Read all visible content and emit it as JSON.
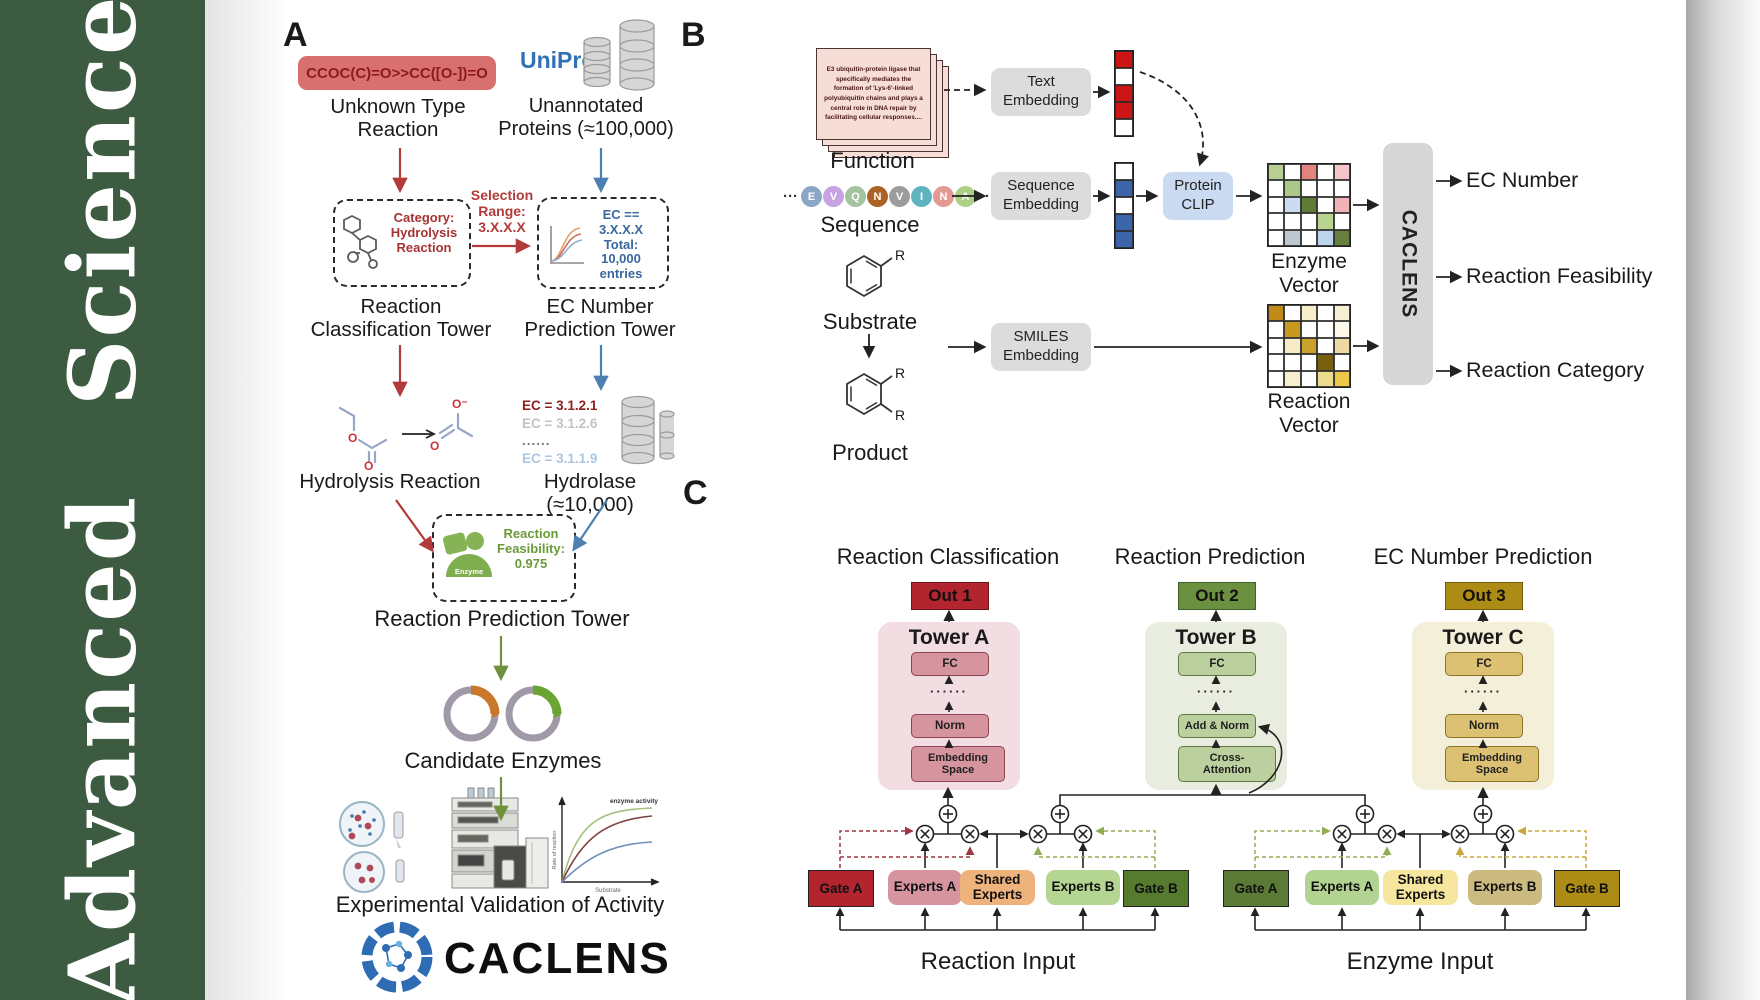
{
  "sidebar": {
    "journal": "Advanced  Science",
    "bg_color": "#3c5b40"
  },
  "panelA": {
    "label": "A",
    "smiles": "CCOC(C)=O>>CC([O-])=O",
    "unknown_reaction": "Unknown Type Reaction",
    "uniprot": "UniProt",
    "unannotated_proteins": "Unannotated Proteins (≈100,000)",
    "category": "Category: Hydrolysis Reaction",
    "selection_range": "Selection Range: 3.X.X.X",
    "ec_filter": "EC == 3.X.X.X Total: 10,000 entries",
    "classification_tower": "Reaction Classification Tower",
    "ec_tower": "EC Number Prediction Tower",
    "hydrolysis_reaction": "Hydrolysis Reaction",
    "ec_list": [
      "EC = 3.1.2.1",
      "EC = 3.1.2.6",
      "......",
      "EC = 3.1.1.9"
    ],
    "hydrolase": "Hydrolase (≈10,000)",
    "enzyme": "Enzyme",
    "feasibility": "Reaction Feasibility: 0.975",
    "prediction_tower": "Reaction Prediction Tower",
    "candidate_enzymes": "Candidate Enzymes",
    "validation": "Experimental Validation of Activity",
    "brand": "CACLENS",
    "activity_plot": {
      "ylabel": "Rate of reaction",
      "xlabel": "Substrate",
      "annotation": "enzyme activity"
    }
  },
  "panelB": {
    "label": "B",
    "function_card": "E3 ubiquitin-protein ligase that specifically mediates the formation of 'Lys-6'-linked polyubiquitin chains and plays a central role in DNA repair by facilitating cellular responses....",
    "function": "Function",
    "ellipsis": "···",
    "residues": [
      {
        "ch": "E",
        "color": "#8ca6c6"
      },
      {
        "ch": "V",
        "color": "#c7a3e3"
      },
      {
        "ch": "Q",
        "color": "#a3c49e"
      },
      {
        "ch": "N",
        "color": "#ad6325"
      },
      {
        "ch": "V",
        "color": "#9c9c9c"
      },
      {
        "ch": "I",
        "color": "#5fb5bf"
      },
      {
        "ch": "N",
        "color": "#e39a92"
      },
      {
        "ch": "A",
        "color": "#aed086"
      }
    ],
    "sequence": "Sequence",
    "substrate": "Substrate",
    "product": "Product",
    "r": "R",
    "text_embedding": "Text Embedding",
    "sequence_embedding": "Sequence Embedding",
    "smiles_embedding": "SMILES Embedding",
    "protein_clip": "Protein CLIP",
    "text_vector": [
      "#cc1616",
      "#ffffff",
      "#cc1616",
      "#cc1616",
      "#ffffff"
    ],
    "sequence_vector": [
      "#ffffff",
      "#3c64aa",
      "#ffffff",
      "#3c64aa",
      "#3c64aa"
    ],
    "enzyme_grid": [
      "#b8cf92",
      "#ffffff",
      "#e2837d",
      "#ffffff",
      "#f4c6ca",
      "#ffffff",
      "#aac989",
      "#ffffff",
      "#ffffff",
      "#ffffff",
      "#ffffff",
      "#ccdcf0",
      "#5f7c37",
      "#ffffff",
      "#f0b3b7",
      "#ffffff",
      "#ffffff",
      "#ffffff",
      "#b8d48e",
      "#ffffff",
      "#ffffff",
      "#bcc7cf",
      "#ffffff",
      "#bdd4ec",
      "#68803f"
    ],
    "reaction_grid": [
      "#c08b17",
      "#ffffff",
      "#f7eecb",
      "#ffffff",
      "#f8f0d2",
      "#ffffff",
      "#c79a1f",
      "#ffffff",
      "#ffffff",
      "#fdf9ea",
      "#ffffff",
      "#f5ecc6",
      "#c9a02a",
      "#ffffff",
      "#ecd9a4",
      "#ffffff",
      "#ffffff",
      "#ffffff",
      "#77600e",
      "#ffffff",
      "#ffffff",
      "#f7efcd",
      "#ffffff",
      "#ecdc8e",
      "#ecc94b"
    ],
    "enzyme_vector_label": "Enzyme Vector",
    "reaction_vector_label": "Reaction Vector",
    "caclens": "CACLENS",
    "outputs": [
      "EC Number",
      "Reaction Feasibility",
      "Reaction Category"
    ]
  },
  "panelC": {
    "label": "C",
    "headings": [
      "Reaction Classification",
      "Reaction Prediction",
      "EC Number Prediction"
    ],
    "outs": [
      "Out 1",
      "Out 2",
      "Out 3"
    ],
    "dots": "······",
    "towers": [
      {
        "name": "Tower A",
        "fc": "FC",
        "mid": "Norm",
        "bottom": "Embedding Space"
      },
      {
        "name": "Tower B",
        "fc": "FC",
        "mid": "Add & Norm",
        "bottom": "Cross-Attention"
      },
      {
        "name": "Tower C",
        "fc": "FC",
        "mid": "Norm",
        "bottom": "Embedding Space"
      }
    ],
    "reaction_group": {
      "gate_a": "Gate A",
      "experts_a": "Experts A",
      "shared": "Shared Experts",
      "experts_b": "Experts B",
      "gate_b": "Gate B",
      "input": "Reaction Input"
    },
    "enzyme_group": {
      "gate_a": "Gate A",
      "experts_a": "Experts A",
      "shared": "Shared Experts",
      "experts_b": "Experts B",
      "gate_b": "Gate B",
      "input": "Enzyme Input"
    }
  }
}
